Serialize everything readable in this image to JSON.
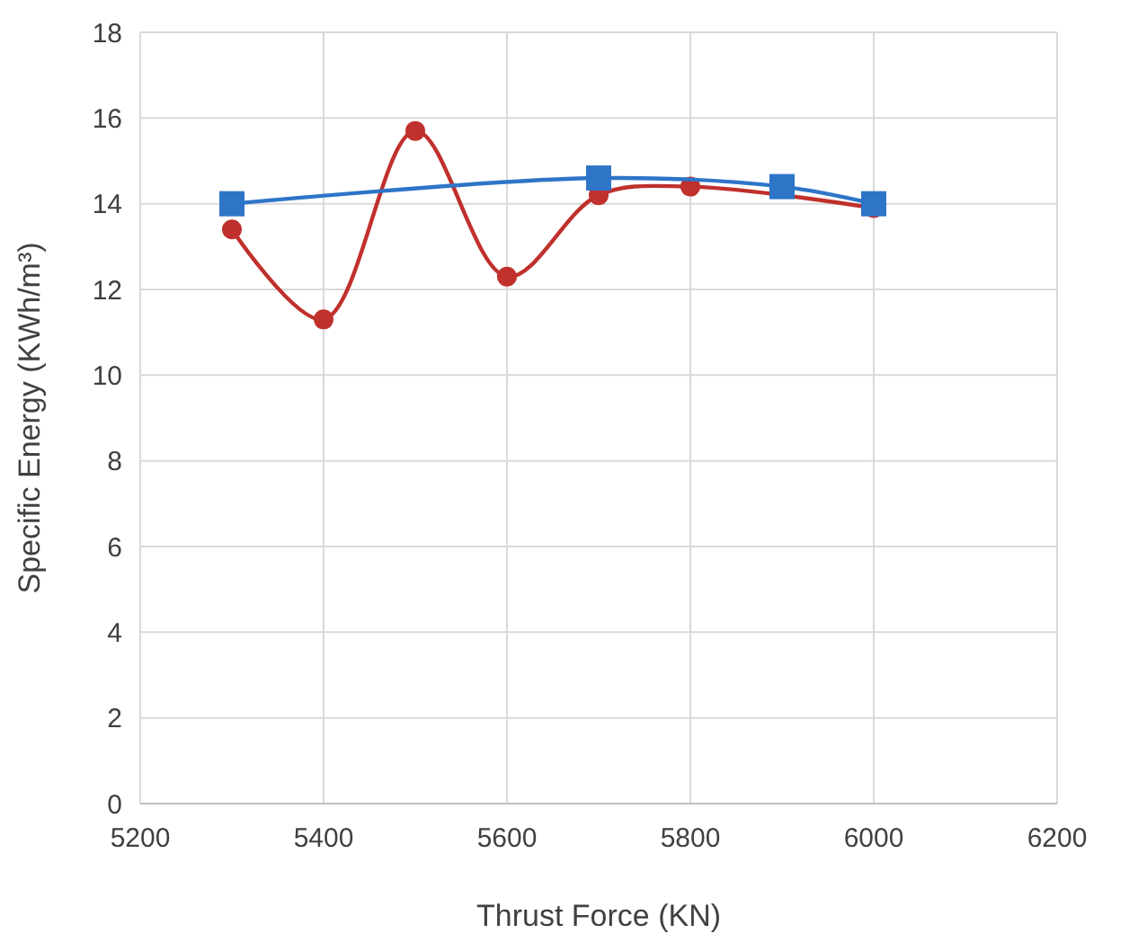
{
  "chart_data": {
    "type": "line",
    "xlabel": "Thrust Force (KN)",
    "ylabel": "Specific Energy (KWh/m³)",
    "xlim": [
      5200,
      6200
    ],
    "xticks": [
      5200,
      5400,
      5600,
      5800,
      6000,
      6200
    ],
    "ylim": [
      0,
      18
    ],
    "yticks": [
      0,
      2,
      4,
      6,
      8,
      10,
      12,
      14,
      16,
      18
    ],
    "grid": true,
    "series": [
      {
        "color": "#c0302c",
        "marker": "circle",
        "x": [
          5300,
          5400,
          5500,
          5600,
          5700,
          5800,
          6000
        ],
        "values": [
          13.4,
          11.3,
          15.7,
          12.3,
          14.2,
          14.4,
          13.9
        ]
      },
      {
        "color": "#2e75c8",
        "marker": "square",
        "x": [
          5300,
          5700,
          5900,
          6000
        ],
        "values": [
          14.0,
          14.6,
          14.4,
          14.0
        ]
      }
    ]
  }
}
